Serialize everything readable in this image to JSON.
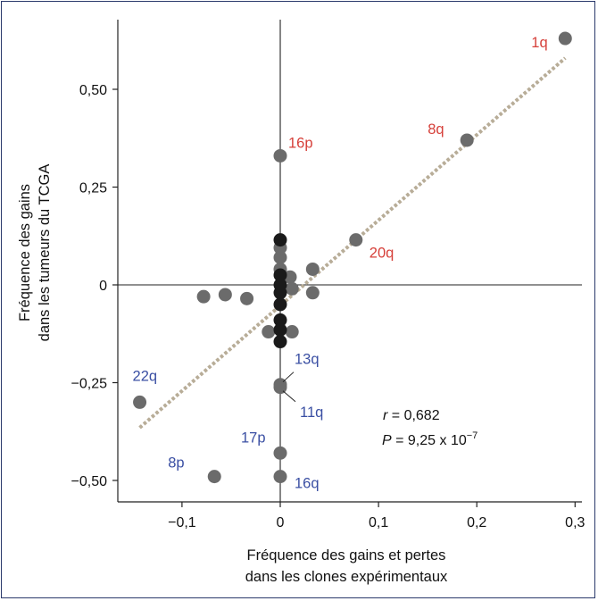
{
  "chart_data": {
    "type": "scatter",
    "xlabel_lines": [
      "Fréquence des gains et pertes",
      "dans les clones expérimentaux"
    ],
    "ylabel_lines": [
      "Fréquence des gains",
      "dans les tumeurs du TCGA"
    ],
    "xlim": [
      -0.165,
      0.305
    ],
    "ylim": [
      -0.55,
      0.63
    ],
    "x_ticks": [
      {
        "v": -0.1,
        "label": "−0,1"
      },
      {
        "v": 0,
        "label": "0"
      },
      {
        "v": 0.1,
        "label": "0,1"
      },
      {
        "v": 0.2,
        "label": "0,2"
      },
      {
        "v": 0.3,
        "label": "0,3"
      }
    ],
    "y_ticks": [
      {
        "v": 0.5,
        "label": "0,50"
      },
      {
        "v": 0.25,
        "label": "0,25"
      },
      {
        "v": 0,
        "label": "0"
      },
      {
        "v": -0.25,
        "label": "−0,25"
      },
      {
        "v": -0.5,
        "label": "−0,50"
      }
    ],
    "colors": {
      "point_gray": "#6b6b6b",
      "point_dark": "#1a1a1a",
      "gain_label": "#d6403a",
      "loss_label": "#3a4fa3",
      "trend": "#b8ad98"
    },
    "points": [
      {
        "x": 0.29,
        "y": 0.63,
        "label": "1q",
        "kind": "gain"
      },
      {
        "x": 0.19,
        "y": 0.37,
        "label": "8q",
        "kind": "gain"
      },
      {
        "x": 0.0,
        "y": 0.33,
        "label": "16p",
        "kind": "gain"
      },
      {
        "x": 0.077,
        "y": 0.115,
        "label": "20q",
        "kind": "gain"
      },
      {
        "x": 0.033,
        "y": 0.04
      },
      {
        "x": 0.01,
        "y": 0.02
      },
      {
        "x": 0.012,
        "y": -0.01
      },
      {
        "x": 0.033,
        "y": -0.02
      },
      {
        "x": -0.078,
        "y": -0.03
      },
      {
        "x": -0.056,
        "y": -0.025
      },
      {
        "x": -0.034,
        "y": -0.035
      },
      {
        "x": -0.012,
        "y": -0.12
      },
      {
        "x": 0.012,
        "y": -0.12
      },
      {
        "x": 0.0,
        "y": 0.07
      },
      {
        "x": 0.0,
        "y": 0.095
      },
      {
        "x": 0.0,
        "y": 0.04
      },
      {
        "x": 0.0,
        "y": 0.115,
        "shade": "dark"
      },
      {
        "x": 0.0,
        "y": 0.025,
        "shade": "dark"
      },
      {
        "x": 0.0,
        "y": 0.0,
        "shade": "dark"
      },
      {
        "x": 0.0,
        "y": -0.02,
        "shade": "dark"
      },
      {
        "x": 0.0,
        "y": -0.05,
        "shade": "dark"
      },
      {
        "x": 0.0,
        "y": -0.09,
        "shade": "dark"
      },
      {
        "x": 0.0,
        "y": -0.115,
        "shade": "dark"
      },
      {
        "x": 0.0,
        "y": -0.145,
        "shade": "dark"
      },
      {
        "x": 0.0,
        "y": -0.255,
        "label": "13q",
        "kind": "loss"
      },
      {
        "x": 0.0,
        "y": -0.262,
        "label": "11q",
        "kind": "loss"
      },
      {
        "x": -0.143,
        "y": -0.3,
        "label": "22q",
        "kind": "loss"
      },
      {
        "x": 0.0,
        "y": -0.43,
        "label": "17p",
        "kind": "loss"
      },
      {
        "x": -0.067,
        "y": -0.49,
        "label": "8p",
        "kind": "loss"
      },
      {
        "x": 0.0,
        "y": -0.49,
        "label": "16q",
        "kind": "loss"
      }
    ],
    "trendline": {
      "x": [
        -0.143,
        0.29
      ],
      "y": [
        -0.365,
        0.58
      ]
    },
    "stats": {
      "r_sym": "r",
      "r_val": " = 0,682",
      "p_sym": "P",
      "p_val": " = 9,25 x 10",
      "p_exp": "−7"
    }
  }
}
